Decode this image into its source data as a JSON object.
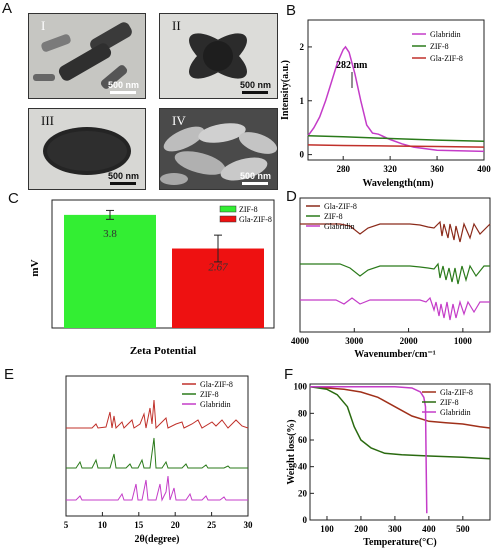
{
  "panel_labels": {
    "A": "A",
    "B": "B",
    "C": "C",
    "D": "D",
    "E": "E",
    "F": "F"
  },
  "micrographs": [
    {
      "label": "I",
      "scale": "500 nm"
    },
    {
      "label": "II",
      "scale": "500 nm"
    },
    {
      "label": "III",
      "scale": "500 nm"
    },
    {
      "label": "IV",
      "scale": "500 nm"
    }
  ],
  "colors": {
    "gla_zif8": "#c0302a",
    "zif8": "#2a7a1a",
    "glabridin": "#c43cc8",
    "zif8_bar": "#33ee33",
    "gla_bar": "#ee1111"
  },
  "chart_data": [
    {
      "id": "B",
      "type": "line",
      "xlabel": "Wavelength(nm)",
      "ylabel": "Intensity(a.u.)",
      "xlim": [
        250,
        400
      ],
      "ylim": [
        -0.1,
        2.5
      ],
      "xticks": [
        280,
        320,
        360,
        400
      ],
      "yticks": [
        0,
        1,
        2
      ],
      "annotation": {
        "text": "282 nm",
        "x": 282,
        "y": 2.0
      },
      "legend": "top-right",
      "series": [
        {
          "name": "Glabridin",
          "color": "#c43cc8",
          "x": [
            250,
            255,
            260,
            265,
            270,
            275,
            280,
            282,
            285,
            290,
            295,
            300,
            305,
            310,
            320,
            330,
            340,
            360,
            400
          ],
          "y": [
            0.35,
            0.5,
            0.7,
            1.0,
            1.35,
            1.7,
            1.95,
            2.0,
            1.9,
            1.5,
            1.0,
            0.55,
            0.4,
            0.38,
            0.28,
            0.2,
            0.14,
            0.08,
            0.06
          ]
        },
        {
          "name": "ZIF-8",
          "color": "#2a7a1a",
          "x": [
            250,
            280,
            320,
            360,
            400
          ],
          "y": [
            0.35,
            0.33,
            0.3,
            0.27,
            0.25
          ]
        },
        {
          "name": "Gla-ZIF-8",
          "color": "#c0302a",
          "x": [
            250,
            280,
            320,
            360,
            400
          ],
          "y": [
            0.18,
            0.17,
            0.16,
            0.15,
            0.14
          ]
        }
      ]
    },
    {
      "id": "C",
      "type": "bar",
      "xlabel": "Zeta Potential",
      "ylabel": "mV",
      "ylim": [
        0,
        4.3
      ],
      "legend": "top-right",
      "categories": [
        "ZIF-8",
        "Gla-ZIF-8"
      ],
      "values": [
        3.8,
        2.67
      ],
      "errors": [
        0.15,
        0.45
      ],
      "data_labels": [
        "3.8",
        "2.67"
      ],
      "series_names": [
        "ZIF-8",
        "Gla-ZIF-8"
      ]
    },
    {
      "id": "D",
      "type": "line",
      "xlabel": "Wavenumber/cm⁻¹",
      "xlim": [
        4000,
        500
      ],
      "xticks": [
        4000,
        3000,
        2000,
        1000
      ],
      "legend": "top-left",
      "series": [
        {
          "name": "Gla-ZIF-8",
          "color": "#8b2a1a"
        },
        {
          "name": "ZIF-8",
          "color": "#2a7a1a"
        },
        {
          "name": "Glabridin",
          "color": "#c43cc8"
        }
      ]
    },
    {
      "id": "E",
      "type": "line",
      "xlabel": "2θ(degree)",
      "xlim": [
        5,
        30
      ],
      "xticks": [
        5,
        10,
        15,
        20,
        25,
        30
      ],
      "legend": "top-right",
      "series": [
        {
          "name": "Gla-ZIF-8",
          "color": "#c0302a"
        },
        {
          "name": "ZIF-8",
          "color": "#2a7a1a"
        },
        {
          "name": "Glabridin",
          "color": "#c43cc8"
        }
      ]
    },
    {
      "id": "F",
      "type": "line",
      "xlabel": "Temperature(°C)",
      "ylabel": "Weight loss(%)",
      "xlim": [
        50,
        580
      ],
      "ylim": [
        0,
        102
      ],
      "xticks": [
        100,
        200,
        300,
        400,
        500
      ],
      "yticks": [
        0,
        20,
        40,
        60,
        80,
        100
      ],
      "legend": "top-right",
      "series": [
        {
          "name": "Gla-ZIF-8",
          "color": "#a0301a",
          "x": [
            50,
            100,
            150,
            200,
            250,
            300,
            350,
            400,
            450,
            500,
            550,
            580
          ],
          "y": [
            100,
            99,
            98,
            96,
            92,
            85,
            78,
            74,
            73,
            72,
            70,
            69
          ]
        },
        {
          "name": "ZIF-8",
          "color": "#2a6a10",
          "x": [
            50,
            100,
            130,
            160,
            180,
            200,
            230,
            270,
            320,
            400,
            500,
            580
          ],
          "y": [
            100,
            98,
            94,
            85,
            70,
            60,
            54,
            50,
            49,
            48,
            47,
            46
          ]
        },
        {
          "name": "Glabridin",
          "color": "#c43cc8",
          "x": [
            50,
            100,
            200,
            300,
            350,
            375,
            385,
            390,
            392,
            394
          ],
          "y": [
            100,
            100,
            100,
            100,
            99,
            96,
            92,
            85,
            40,
            5
          ]
        }
      ]
    }
  ]
}
